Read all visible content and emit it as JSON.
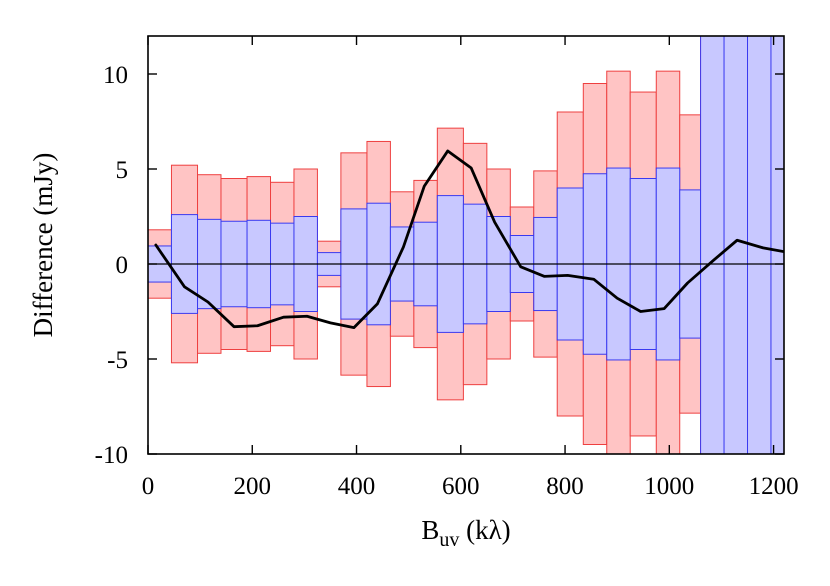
{
  "chart_data": {
    "type": "bar",
    "title": "",
    "xlabel": "B",
    "xlabel_subscript": "uv",
    "xlabel_suffix": " (kλ)",
    "ylabel": "Difference (mJy)",
    "xlim": [
      0,
      1220
    ],
    "ylim": [
      -10,
      12
    ],
    "grid": false,
    "xticks": [
      0,
      200,
      400,
      600,
      800,
      1000,
      1200
    ],
    "yticks": [
      -10,
      -5,
      0,
      5,
      10
    ],
    "xtick_labels": [
      "0",
      "200",
      "400",
      "600",
      "800",
      "1000",
      "1200"
    ],
    "ytick_labels": [
      "-10",
      "-5",
      "0",
      "5",
      "10"
    ],
    "bin_edges": [
      0,
      45,
      95,
      140,
      190,
      235,
      280,
      325,
      370,
      420,
      465,
      510,
      555,
      605,
      650,
      695,
      740,
      785,
      835,
      880,
      925,
      975,
      1020,
      1060,
      1105,
      1150,
      1195,
      1220
    ],
    "outer_halfwidth": [
      1.8,
      5.2,
      4.7,
      4.5,
      4.6,
      4.3,
      5.0,
      1.2,
      5.85,
      6.45,
      3.8,
      4.4,
      7.15,
      6.35,
      5.0,
      3.0,
      4.9,
      8.0,
      9.5,
      10.15,
      9.05,
      10.15,
      7.85,
      12,
      12,
      12,
      12
    ],
    "inner_halfwidth": [
      0.95,
      2.6,
      2.35,
      2.25,
      2.3,
      2.15,
      2.5,
      0.6,
      2.9,
      3.2,
      1.95,
      2.2,
      3.6,
      3.15,
      2.5,
      1.5,
      2.45,
      4.0,
      4.75,
      5.05,
      4.5,
      5.05,
      3.9,
      12,
      12,
      12,
      12
    ],
    "series": [
      {
        "type": "line",
        "x": [
          15,
          70,
          115,
          165,
          210,
          260,
          305,
          350,
          395,
          440,
          490,
          530,
          575,
          620,
          665,
          715,
          760,
          805,
          855,
          900,
          945,
          990,
          1035,
          1085,
          1130,
          1180,
          1220
        ],
        "y": [
          1.0,
          -1.2,
          -2.0,
          -3.3,
          -3.25,
          -2.8,
          -2.75,
          -3.1,
          -3.35,
          -2.1,
          0.9,
          4.1,
          5.95,
          5.05,
          2.2,
          -0.15,
          -0.65,
          -0.6,
          -0.8,
          -1.8,
          -2.5,
          -2.35,
          -1.0,
          0.2,
          1.25,
          0.85,
          0.65
        ]
      }
    ],
    "colors": {
      "outer_fill": "#ffc4c4",
      "outer_stroke": "#ee4040",
      "inner_fill": "#c8c8ff",
      "inner_stroke": "#3a3af0",
      "line": "#000000",
      "zero_line": "#000000"
    }
  }
}
